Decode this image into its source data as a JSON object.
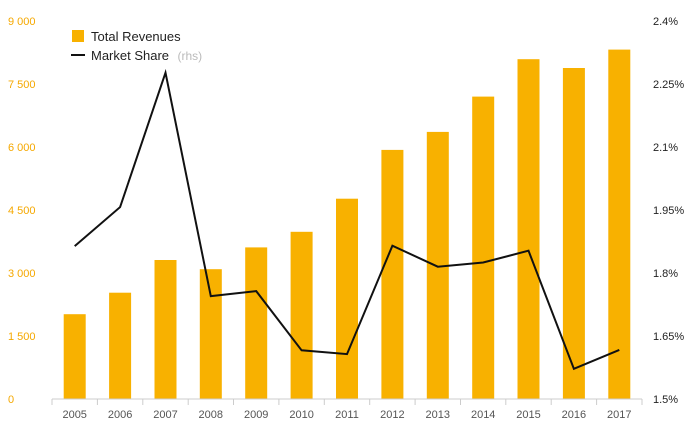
{
  "chart_data": {
    "type": "bar",
    "categories": [
      "2005",
      "2006",
      "2007",
      "2008",
      "2009",
      "2010",
      "2011",
      "2012",
      "2013",
      "2014",
      "2015",
      "2016",
      "2017"
    ],
    "series": [
      {
        "name": "Total Revenues",
        "type": "bar",
        "axis": "left",
        "color": "#f8b100",
        "values": [
          2020,
          2530,
          3310,
          3090,
          3610,
          3980,
          4770,
          5930,
          6360,
          7200,
          8090,
          7880,
          8320
        ]
      },
      {
        "name": "Market Share",
        "name_suffix": "(rhs)",
        "type": "line",
        "axis": "right",
        "color": "#111111",
        "values": [
          1.864,
          1.957,
          2.277,
          1.745,
          1.757,
          1.616,
          1.607,
          1.865,
          1.815,
          1.825,
          1.853,
          1.572,
          1.617
        ]
      }
    ],
    "y_left": {
      "min": 0,
      "max": 9000,
      "ticks": [
        0,
        1500,
        3000,
        4500,
        6000,
        7500,
        9000
      ],
      "tick_labels": [
        "0",
        "1 500",
        "3 000",
        "4 500",
        "6 000",
        "7 500",
        "9 000"
      ],
      "color": "#f5a800"
    },
    "y_right": {
      "min": 1.5,
      "max": 2.4,
      "ticks": [
        1.5,
        1.65,
        1.8,
        1.95,
        2.1,
        2.25,
        2.4
      ],
      "tick_labels": [
        "1.5%",
        "1.65%",
        "1.8%",
        "1.95%",
        "2.1%",
        "2.25%",
        "2.4%"
      ],
      "color": "#222222"
    },
    "title": "",
    "xlabel": "",
    "ylabel": "",
    "grid": false,
    "legend_position": "top-left"
  }
}
